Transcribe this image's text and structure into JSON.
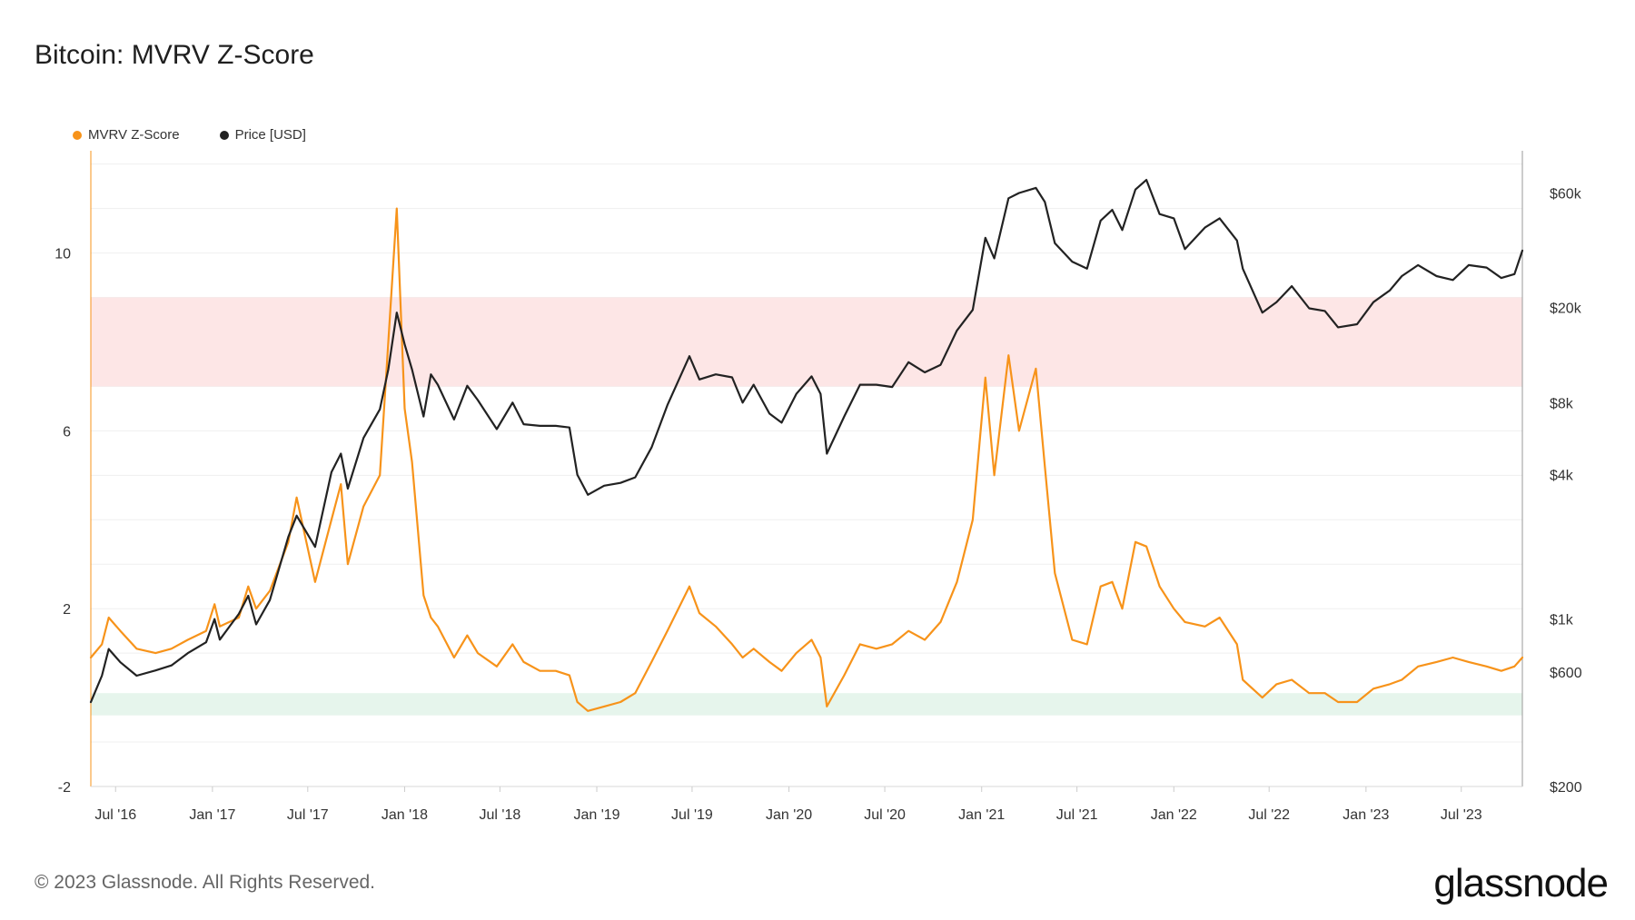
{
  "title": "Bitcoin: MVRV Z-Score",
  "legend": [
    {
      "label": "MVRV Z-Score",
      "color": "#f7931a"
    },
    {
      "label": "Price [USD]",
      "color": "#222222"
    }
  ],
  "footer": "© 2023 Glassnode. All Rights Reserved.",
  "brand": "glassnode",
  "chart_data": {
    "type": "line",
    "title": "Bitcoin: MVRV Z-Score",
    "xlabel": "",
    "ylabel": "",
    "x_ticks": [
      "Jul '16",
      "Jan '17",
      "Jul '17",
      "Jan '18",
      "Jul '18",
      "Jan '19",
      "Jul '19",
      "Jan '20",
      "Jul '20",
      "Jan '21",
      "Jul '21",
      "Jan '22",
      "Jul '22",
      "Jan '23",
      "Jul '23"
    ],
    "x_range": [
      "2016-05-15",
      "2023-10-25"
    ],
    "y_left": {
      "ticks": [
        "-2",
        "2",
        "6",
        "10"
      ],
      "tick_values": [
        -2,
        2,
        6,
        10
      ],
      "range": [
        -2,
        12.3
      ]
    },
    "y_right": {
      "scale": "log",
      "ticks": [
        "$200",
        "$600",
        "$1k",
        "$4k",
        "$8k",
        "$20k",
        "$60k"
      ],
      "tick_values": [
        200,
        600,
        1000,
        4000,
        8000,
        20000,
        60000
      ],
      "range": [
        200,
        90000
      ]
    },
    "bands": [
      {
        "name": "overvalued-zone",
        "from": 7,
        "to": 9,
        "color": "#fde6e6"
      },
      {
        "name": "undervalued-zone",
        "from": -0.4,
        "to": 0.1,
        "color": "#e6f5ec"
      }
    ],
    "series": [
      {
        "name": "MVRV Z-Score",
        "axis": "left",
        "color": "#f7931a",
        "x": [
          "2016-05-15",
          "2016-06-05",
          "2016-06-18",
          "2016-07-10",
          "2016-08-10",
          "2016-09-15",
          "2016-10-15",
          "2016-11-15",
          "2016-12-20",
          "2017-01-05",
          "2017-01-15",
          "2017-02-20",
          "2017-03-10",
          "2017-03-25",
          "2017-04-20",
          "2017-05-25",
          "2017-06-10",
          "2017-07-15",
          "2017-08-15",
          "2017-09-02",
          "2017-09-15",
          "2017-10-15",
          "2017-11-15",
          "2017-12-01",
          "2017-12-17",
          "2018-01-01",
          "2018-01-15",
          "2018-02-06",
          "2018-02-20",
          "2018-03-05",
          "2018-04-05",
          "2018-04-30",
          "2018-05-20",
          "2018-06-25",
          "2018-07-25",
          "2018-08-15",
          "2018-09-15",
          "2018-10-15",
          "2018-11-10",
          "2018-11-25",
          "2018-12-15",
          "2019-01-15",
          "2019-02-15",
          "2019-03-15",
          "2019-04-15",
          "2019-05-15",
          "2019-06-26",
          "2019-07-15",
          "2019-08-15",
          "2019-09-15",
          "2019-10-05",
          "2019-10-26",
          "2019-11-25",
          "2019-12-18",
          "2020-01-15",
          "2020-02-13",
          "2020-03-01",
          "2020-03-13",
          "2020-04-15",
          "2020-05-15",
          "2020-06-15",
          "2020-07-15",
          "2020-08-15",
          "2020-09-15",
          "2020-10-15",
          "2020-11-15",
          "2020-12-15",
          "2021-01-08",
          "2021-01-25",
          "2021-02-21",
          "2021-03-13",
          "2021-04-14",
          "2021-05-01",
          "2021-05-20",
          "2021-06-22",
          "2021-07-20",
          "2021-08-15",
          "2021-09-06",
          "2021-09-25",
          "2021-10-20",
          "2021-11-10",
          "2021-12-05",
          "2022-01-01",
          "2022-01-22",
          "2022-03-01",
          "2022-03-29",
          "2022-05-01",
          "2022-05-12",
          "2022-06-18",
          "2022-07-15",
          "2022-08-13",
          "2022-09-15",
          "2022-10-15",
          "2022-11-09",
          "2022-12-15",
          "2023-01-15",
          "2023-02-15",
          "2023-03-10",
          "2023-04-10",
          "2023-05-15",
          "2023-06-15",
          "2023-07-15",
          "2023-08-18",
          "2023-09-15",
          "2023-10-10",
          "2023-10-25"
        ],
        "y": [
          0.9,
          1.2,
          1.8,
          1.5,
          1.1,
          1.0,
          1.1,
          1.3,
          1.5,
          2.1,
          1.6,
          1.8,
          2.5,
          2.0,
          2.4,
          3.5,
          4.5,
          2.6,
          4.0,
          4.8,
          3.0,
          4.3,
          5.0,
          8.0,
          11.0,
          6.5,
          5.3,
          2.3,
          1.8,
          1.6,
          0.9,
          1.4,
          1.0,
          0.7,
          1.2,
          0.8,
          0.6,
          0.6,
          0.5,
          -0.1,
          -0.3,
          -0.2,
          -0.1,
          0.1,
          0.8,
          1.5,
          2.5,
          1.9,
          1.6,
          1.2,
          0.9,
          1.1,
          0.8,
          0.6,
          1.0,
          1.3,
          0.9,
          -0.2,
          0.5,
          1.2,
          1.1,
          1.2,
          1.5,
          1.3,
          1.7,
          2.6,
          4.0,
          7.2,
          5.0,
          7.7,
          6.0,
          7.4,
          5.2,
          2.8,
          1.3,
          1.2,
          2.5,
          2.6,
          2.0,
          3.5,
          3.4,
          2.5,
          2.0,
          1.7,
          1.6,
          1.8,
          1.2,
          0.4,
          0.0,
          0.3,
          0.4,
          0.1,
          0.1,
          -0.1,
          -0.1,
          0.2,
          0.3,
          0.4,
          0.7,
          0.8,
          0.9,
          0.8,
          0.7,
          0.6,
          0.7,
          0.9
        ]
      },
      {
        "name": "Price [USD]",
        "axis": "right",
        "color": "#222222",
        "x": [
          "2016-05-15",
          "2016-06-05",
          "2016-06-18",
          "2016-07-10",
          "2016-08-10",
          "2016-09-15",
          "2016-10-15",
          "2016-11-15",
          "2016-12-20",
          "2017-01-05",
          "2017-01-15",
          "2017-02-20",
          "2017-03-10",
          "2017-03-25",
          "2017-04-20",
          "2017-05-25",
          "2017-06-10",
          "2017-07-15",
          "2017-08-15",
          "2017-09-02",
          "2017-09-15",
          "2017-10-15",
          "2017-11-15",
          "2017-12-01",
          "2017-12-17",
          "2018-01-01",
          "2018-01-15",
          "2018-02-06",
          "2018-02-20",
          "2018-03-05",
          "2018-04-05",
          "2018-04-30",
          "2018-05-20",
          "2018-06-25",
          "2018-07-25",
          "2018-08-15",
          "2018-09-15",
          "2018-10-15",
          "2018-11-10",
          "2018-11-25",
          "2018-12-15",
          "2019-01-15",
          "2019-02-15",
          "2019-03-15",
          "2019-04-15",
          "2019-05-15",
          "2019-06-26",
          "2019-07-15",
          "2019-08-15",
          "2019-09-15",
          "2019-10-05",
          "2019-10-26",
          "2019-11-25",
          "2019-12-18",
          "2020-01-15",
          "2020-02-13",
          "2020-03-01",
          "2020-03-13",
          "2020-04-15",
          "2020-05-15",
          "2020-06-15",
          "2020-07-15",
          "2020-08-15",
          "2020-09-15",
          "2020-10-15",
          "2020-11-15",
          "2020-12-15",
          "2021-01-08",
          "2021-01-25",
          "2021-02-21",
          "2021-03-13",
          "2021-04-14",
          "2021-05-01",
          "2021-05-20",
          "2021-06-22",
          "2021-07-20",
          "2021-08-15",
          "2021-09-06",
          "2021-09-25",
          "2021-10-20",
          "2021-11-10",
          "2021-12-05",
          "2022-01-01",
          "2022-01-22",
          "2022-03-01",
          "2022-03-29",
          "2022-05-01",
          "2022-05-12",
          "2022-06-18",
          "2022-07-15",
          "2022-08-13",
          "2022-09-15",
          "2022-10-15",
          "2022-11-09",
          "2022-12-15",
          "2023-01-15",
          "2023-02-15",
          "2023-03-10",
          "2023-04-10",
          "2023-05-15",
          "2023-06-15",
          "2023-07-15",
          "2023-08-18",
          "2023-09-15",
          "2023-10-10",
          "2023-10-25"
        ],
        "y": [
          450,
          580,
          750,
          660,
          580,
          610,
          640,
          720,
          800,
          1000,
          820,
          1050,
          1250,
          950,
          1200,
          2200,
          2700,
          2000,
          4100,
          4900,
          3500,
          5700,
          7500,
          11000,
          19000,
          14000,
          11000,
          7000,
          10500,
          9500,
          6800,
          9400,
          8200,
          6200,
          8000,
          6500,
          6400,
          6400,
          6300,
          4000,
          3300,
          3600,
          3700,
          3900,
          5200,
          7800,
          12500,
          10000,
          10500,
          10200,
          8000,
          9500,
          7200,
          6600,
          8700,
          10300,
          8700,
          4900,
          7000,
          9500,
          9500,
          9300,
          11800,
          10700,
          11500,
          16000,
          19500,
          39000,
          32000,
          57000,
          60000,
          63000,
          55000,
          37000,
          31000,
          29000,
          46000,
          51000,
          42000,
          62000,
          68000,
          49000,
          47000,
          35000,
          43000,
          47000,
          38000,
          29000,
          19000,
          21000,
          24500,
          19800,
          19300,
          16500,
          17000,
          21000,
          23500,
          27000,
          30000,
          27000,
          26000,
          30000,
          29300,
          26500,
          27500,
          34500
        ]
      }
    ]
  }
}
